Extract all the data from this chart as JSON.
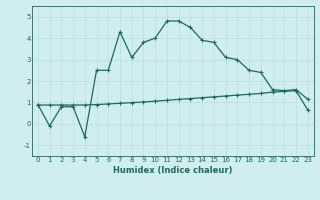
{
  "x": [
    0,
    1,
    2,
    3,
    4,
    5,
    6,
    7,
    8,
    9,
    10,
    11,
    12,
    13,
    14,
    15,
    16,
    17,
    18,
    19,
    20,
    21,
    22,
    23
  ],
  "y_curve": [
    0.9,
    -0.1,
    0.8,
    0.8,
    -0.6,
    2.5,
    2.5,
    4.3,
    3.1,
    3.8,
    4.0,
    4.8,
    4.8,
    4.5,
    3.9,
    3.8,
    3.1,
    3.0,
    2.5,
    2.4,
    1.6,
    1.55,
    1.6,
    1.15
  ],
  "y_trend": [
    0.88,
    0.88,
    0.88,
    0.88,
    0.88,
    0.9,
    0.93,
    0.96,
    0.99,
    1.02,
    1.06,
    1.1,
    1.14,
    1.18,
    1.22,
    1.26,
    1.3,
    1.34,
    1.38,
    1.42,
    1.48,
    1.52,
    1.55,
    0.65
  ],
  "line_color": "#1a6b5a",
  "bg_color": "#d0eeee",
  "grid_color": "#b8dede",
  "xlabel": "Humidex (Indice chaleur)",
  "xlim": [
    -0.5,
    23.5
  ],
  "ylim": [
    -1.5,
    5.5
  ],
  "yticks": [
    -1,
    0,
    1,
    2,
    3,
    4,
    5
  ],
  "xtick_labels": [
    "0",
    "1",
    "2",
    "3",
    "4",
    "5",
    "6",
    "7",
    "8",
    "9",
    "10",
    "11",
    "12",
    "13",
    "14",
    "15",
    "16",
    "17",
    "18",
    "19",
    "20",
    "21",
    "22",
    "23"
  ],
  "markersize": 3.5,
  "linewidth": 0.9,
  "tick_fontsize": 5.0,
  "xlabel_fontsize": 6.0
}
